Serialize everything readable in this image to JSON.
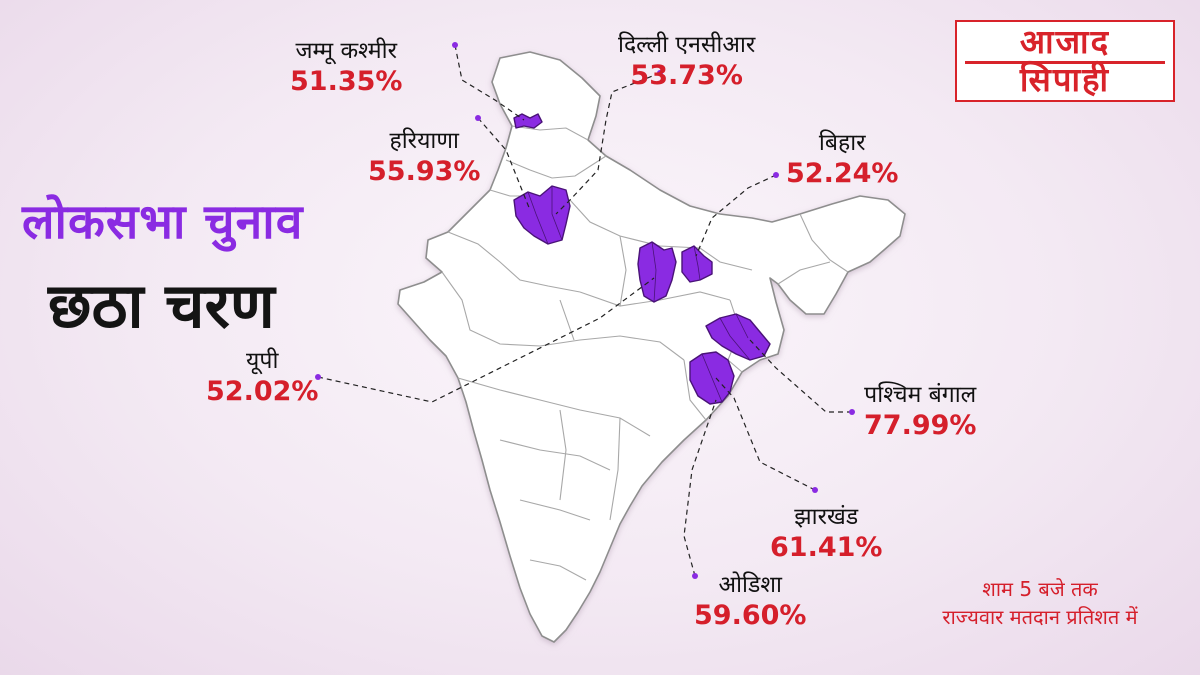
{
  "title": {
    "line1": "लोकसभा चुनाव",
    "line2": "छठा चरण"
  },
  "logo": {
    "line1": "आजाद",
    "line2": "सिपाही",
    "color": "#d8232a"
  },
  "states": [
    {
      "id": "jk",
      "name": "जम्मू कश्मीर",
      "turnout": "51.35%"
    },
    {
      "id": "delhi",
      "name": "दिल्ली एनसीआर",
      "turnout": "53.73%"
    },
    {
      "id": "haryana",
      "name": "हरियाणा",
      "turnout": "55.93%"
    },
    {
      "id": "bihar",
      "name": "बिहार",
      "turnout": "52.24%"
    },
    {
      "id": "up",
      "name": "यूपी",
      "turnout": "52.02%"
    },
    {
      "id": "wb",
      "name": "पश्चिम बंगाल",
      "turnout": "77.99%"
    },
    {
      "id": "jharkhand",
      "name": "झारखंड",
      "turnout": "61.41%"
    },
    {
      "id": "odisha",
      "name": "ओडिशा",
      "turnout": "59.60%"
    }
  ],
  "note": {
    "line1": "शाम 5 बजे तक",
    "line2": "राज्यवार मतदान प्रतिशत में"
  },
  "colors": {
    "highlight": "#8a2be2",
    "percent": "#d51f2b",
    "title_purple": "#8a2be2",
    "title_dark": "#141414",
    "map_fill": "#ffffff",
    "map_border": "#9a9a9a"
  }
}
